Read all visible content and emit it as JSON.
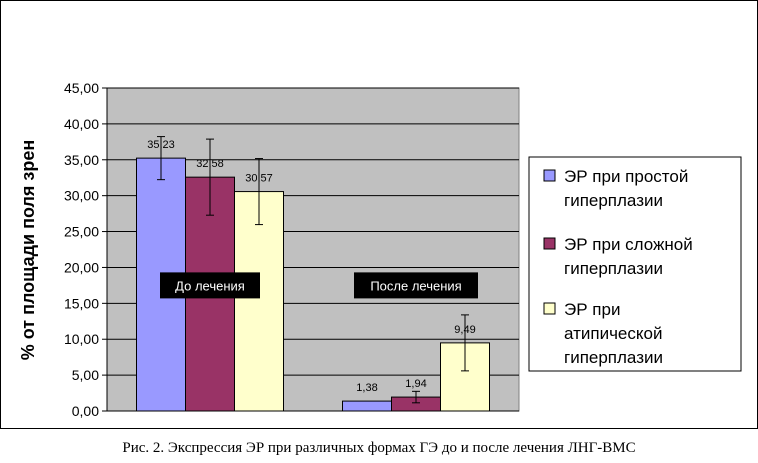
{
  "caption": "Рис. 2. Экспрессия ЭР при различных формах ГЭ до и после лечения ЛНГ-ВМС",
  "chart_data": {
    "type": "bar",
    "ylabel": "% от площади поля зрен",
    "ylim": [
      0,
      45
    ],
    "ytick_step": 5,
    "ytick_labels": [
      "0,00",
      "5,00",
      "10,00",
      "15,00",
      "20,00",
      "25,00",
      "30,00",
      "35,00",
      "40,00",
      "45,00"
    ],
    "grid": true,
    "legend_position": "right",
    "categories": [
      "До лечения",
      "После лечения"
    ],
    "series": [
      {
        "name": "ЭР при простой гиперплазии",
        "color": "#9999ff",
        "values": [
          35.23,
          1.38
        ],
        "labels": [
          "35,23",
          "1,38"
        ],
        "errors": [
          3.0,
          null
        ]
      },
      {
        "name": "ЭР при сложной гиперплазии",
        "color": "#993366",
        "values": [
          32.58,
          1.94
        ],
        "labels": [
          "32,58",
          "1,94"
        ],
        "errors": [
          5.3,
          0.8
        ]
      },
      {
        "name": "ЭР при атипической гиперплазии",
        "color": "#ffffcc",
        "values": [
          30.57,
          9.49
        ],
        "labels": [
          "30,57",
          "9,49"
        ],
        "errors": [
          4.6,
          3.9
        ]
      }
    ],
    "legend_lines": [
      [
        "ЭР при простой",
        "гиперплазии"
      ],
      [
        "ЭР при сложной",
        "гиперплазии"
      ],
      [
        "ЭР при",
        "атипической",
        "гиперплазии"
      ]
    ],
    "colors": {
      "plot_background": "#c0c0c0",
      "gridline": "#000000",
      "category_label_bg": "#000000",
      "category_label_text": "#ffffff"
    }
  }
}
